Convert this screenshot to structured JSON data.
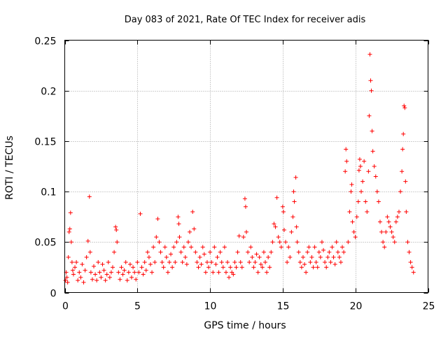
{
  "chart_data": {
    "type": "scatter",
    "marker": "plus",
    "title": "Day 083 of 2021, Rate Of TEC Index for receiver adis",
    "xlabel": "GPS time / hours",
    "ylabel": "ROTI / TECUs",
    "xlim": [
      0,
      25
    ],
    "ylim": [
      0,
      0.25
    ],
    "xticks": [
      0,
      5,
      10,
      15,
      20,
      25
    ],
    "xtick_labels": [
      "0",
      "5",
      "10",
      "15",
      "20",
      "25"
    ],
    "yticks": [
      0,
      0.05,
      0.1,
      0.15,
      0.2,
      0.25
    ],
    "ytick_labels": [
      "0",
      "0.05",
      "0.1",
      "0.15",
      "0.2",
      "0.25"
    ],
    "grid": true,
    "color": "#ff0000",
    "series": [
      {
        "name": "ROTI",
        "points": [
          [
            0.05,
            0.012
          ],
          [
            0.1,
            0.02
          ],
          [
            0.15,
            0.015
          ],
          [
            0.2,
            0.01
          ],
          [
            0.25,
            0.035
          ],
          [
            0.3,
            0.06
          ],
          [
            0.35,
            0.063
          ],
          [
            0.4,
            0.079
          ],
          [
            0.45,
            0.05
          ],
          [
            0.5,
            0.03
          ],
          [
            0.55,
            0.022
          ],
          [
            0.6,
            0.018
          ],
          [
            0.7,
            0.025
          ],
          [
            0.8,
            0.03
          ],
          [
            0.9,
            0.012
          ],
          [
            1.0,
            0.02
          ],
          [
            1.1,
            0.015
          ],
          [
            1.2,
            0.028
          ],
          [
            1.3,
            0.01
          ],
          [
            1.4,
            0.022
          ],
          [
            1.5,
            0.035
          ],
          [
            1.6,
            0.051
          ],
          [
            1.7,
            0.095
          ],
          [
            1.75,
            0.04
          ],
          [
            1.8,
            0.02
          ],
          [
            1.9,
            0.013
          ],
          [
            2.0,
            0.026
          ],
          [
            2.1,
            0.018
          ],
          [
            2.2,
            0.012
          ],
          [
            2.3,
            0.03
          ],
          [
            2.4,
            0.02
          ],
          [
            2.5,
            0.015
          ],
          [
            2.6,
            0.028
          ],
          [
            2.7,
            0.022
          ],
          [
            2.8,
            0.012
          ],
          [
            2.9,
            0.018
          ],
          [
            3.0,
            0.03
          ],
          [
            3.1,
            0.015
          ],
          [
            3.2,
            0.02
          ],
          [
            3.3,
            0.025
          ],
          [
            3.4,
            0.04
          ],
          [
            3.5,
            0.065
          ],
          [
            3.55,
            0.062
          ],
          [
            3.6,
            0.05
          ],
          [
            3.7,
            0.02
          ],
          [
            3.8,
            0.013
          ],
          [
            3.9,
            0.025
          ],
          [
            4.0,
            0.018
          ],
          [
            4.1,
            0.022
          ],
          [
            4.2,
            0.03
          ],
          [
            4.3,
            0.012
          ],
          [
            4.4,
            0.02
          ],
          [
            4.5,
            0.028
          ],
          [
            4.6,
            0.015
          ],
          [
            4.7,
            0.025
          ],
          [
            4.8,
            0.02
          ],
          [
            4.9,
            0.013
          ],
          [
            5.0,
            0.03
          ],
          [
            5.1,
            0.02
          ],
          [
            5.2,
            0.078
          ],
          [
            5.3,
            0.025
          ],
          [
            5.4,
            0.018
          ],
          [
            5.5,
            0.03
          ],
          [
            5.6,
            0.022
          ],
          [
            5.7,
            0.04
          ],
          [
            5.8,
            0.035
          ],
          [
            5.9,
            0.028
          ],
          [
            6.0,
            0.02
          ],
          [
            6.1,
            0.045
          ],
          [
            6.2,
            0.03
          ],
          [
            6.3,
            0.055
          ],
          [
            6.4,
            0.073
          ],
          [
            6.5,
            0.05
          ],
          [
            6.6,
            0.04
          ],
          [
            6.7,
            0.03
          ],
          [
            6.8,
            0.025
          ],
          [
            6.9,
            0.045
          ],
          [
            7.0,
            0.035
          ],
          [
            7.1,
            0.02
          ],
          [
            7.2,
            0.03
          ],
          [
            7.3,
            0.038
          ],
          [
            7.4,
            0.025
          ],
          [
            7.5,
            0.045
          ],
          [
            7.6,
            0.03
          ],
          [
            7.7,
            0.05
          ],
          [
            7.8,
            0.075
          ],
          [
            7.85,
            0.068
          ],
          [
            7.9,
            0.055
          ],
          [
            8.0,
            0.04
          ],
          [
            8.1,
            0.03
          ],
          [
            8.2,
            0.045
          ],
          [
            8.3,
            0.035
          ],
          [
            8.4,
            0.028
          ],
          [
            8.5,
            0.05
          ],
          [
            8.6,
            0.06
          ],
          [
            8.7,
            0.045
          ],
          [
            8.8,
            0.08
          ],
          [
            8.9,
            0.063
          ],
          [
            9.0,
            0.04
          ],
          [
            9.1,
            0.03
          ],
          [
            9.2,
            0.025
          ],
          [
            9.3,
            0.035
          ],
          [
            9.4,
            0.028
          ],
          [
            9.5,
            0.045
          ],
          [
            9.6,
            0.038
          ],
          [
            9.7,
            0.02
          ],
          [
            9.8,
            0.03
          ],
          [
            9.9,
            0.025
          ],
          [
            10.0,
            0.04
          ],
          [
            10.1,
            0.03
          ],
          [
            10.2,
            0.02
          ],
          [
            10.3,
            0.045
          ],
          [
            10.4,
            0.028
          ],
          [
            10.5,
            0.035
          ],
          [
            10.6,
            0.02
          ],
          [
            10.7,
            0.04
          ],
          [
            10.8,
            0.03
          ],
          [
            10.9,
            0.025
          ],
          [
            11.0,
            0.045
          ],
          [
            11.1,
            0.02
          ],
          [
            11.2,
            0.03
          ],
          [
            11.3,
            0.015
          ],
          [
            11.4,
            0.025
          ],
          [
            11.5,
            0.02
          ],
          [
            11.6,
            0.018
          ],
          [
            11.7,
            0.03
          ],
          [
            11.8,
            0.025
          ],
          [
            11.9,
            0.04
          ],
          [
            12.0,
            0.056
          ],
          [
            12.1,
            0.03
          ],
          [
            12.2,
            0.025
          ],
          [
            12.3,
            0.055
          ],
          [
            12.4,
            0.093
          ],
          [
            12.45,
            0.085
          ],
          [
            12.5,
            0.06
          ],
          [
            12.6,
            0.04
          ],
          [
            12.7,
            0.03
          ],
          [
            12.8,
            0.045
          ],
          [
            12.9,
            0.035
          ],
          [
            13.0,
            0.025
          ],
          [
            13.1,
            0.03
          ],
          [
            13.2,
            0.038
          ],
          [
            13.3,
            0.02
          ],
          [
            13.4,
            0.035
          ],
          [
            13.5,
            0.028
          ],
          [
            13.6,
            0.025
          ],
          [
            13.7,
            0.04
          ],
          [
            13.8,
            0.03
          ],
          [
            13.9,
            0.02
          ],
          [
            14.0,
            0.035
          ],
          [
            14.1,
            0.025
          ],
          [
            14.2,
            0.04
          ],
          [
            14.3,
            0.05
          ],
          [
            14.4,
            0.068
          ],
          [
            14.5,
            0.065
          ],
          [
            14.6,
            0.094
          ],
          [
            14.7,
            0.055
          ],
          [
            14.8,
            0.05
          ],
          [
            14.9,
            0.045
          ],
          [
            15.0,
            0.085
          ],
          [
            15.05,
            0.08
          ],
          [
            15.1,
            0.062
          ],
          [
            15.2,
            0.05
          ],
          [
            15.3,
            0.03
          ],
          [
            15.4,
            0.045
          ],
          [
            15.5,
            0.035
          ],
          [
            15.6,
            0.06
          ],
          [
            15.7,
            0.075
          ],
          [
            15.75,
            0.1
          ],
          [
            15.8,
            0.09
          ],
          [
            15.9,
            0.114
          ],
          [
            15.95,
            0.065
          ],
          [
            16.0,
            0.05
          ],
          [
            16.1,
            0.04
          ],
          [
            16.2,
            0.03
          ],
          [
            16.3,
            0.025
          ],
          [
            16.4,
            0.035
          ],
          [
            16.5,
            0.028
          ],
          [
            16.6,
            0.02
          ],
          [
            16.7,
            0.04
          ],
          [
            16.8,
            0.045
          ],
          [
            16.9,
            0.03
          ],
          [
            17.0,
            0.035
          ],
          [
            17.1,
            0.025
          ],
          [
            17.2,
            0.045
          ],
          [
            17.3,
            0.03
          ],
          [
            17.4,
            0.025
          ],
          [
            17.5,
            0.04
          ],
          [
            17.6,
            0.035
          ],
          [
            17.7,
            0.05
          ],
          [
            17.8,
            0.042
          ],
          [
            17.9,
            0.03
          ],
          [
            18.0,
            0.025
          ],
          [
            18.1,
            0.035
          ],
          [
            18.2,
            0.04
          ],
          [
            18.3,
            0.03
          ],
          [
            18.4,
            0.045
          ],
          [
            18.5,
            0.035
          ],
          [
            18.6,
            0.028
          ],
          [
            18.7,
            0.05
          ],
          [
            18.8,
            0.04
          ],
          [
            18.9,
            0.035
          ],
          [
            19.0,
            0.03
          ],
          [
            19.1,
            0.045
          ],
          [
            19.2,
            0.04
          ],
          [
            19.3,
            0.12
          ],
          [
            19.35,
            0.142
          ],
          [
            19.4,
            0.13
          ],
          [
            19.5,
            0.05
          ],
          [
            19.6,
            0.08
          ],
          [
            19.7,
            0.1
          ],
          [
            19.75,
            0.107
          ],
          [
            19.8,
            0.07
          ],
          [
            19.9,
            0.06
          ],
          [
            20.0,
            0.055
          ],
          [
            20.1,
            0.075
          ],
          [
            20.2,
            0.09
          ],
          [
            20.25,
            0.121
          ],
          [
            20.3,
            0.132
          ],
          [
            20.35,
            0.125
          ],
          [
            20.4,
            0.1
          ],
          [
            20.5,
            0.11
          ],
          [
            20.6,
            0.13
          ],
          [
            20.7,
            0.09
          ],
          [
            20.8,
            0.08
          ],
          [
            20.9,
            0.12
          ],
          [
            20.95,
            0.175
          ],
          [
            21.0,
            0.236
          ],
          [
            21.05,
            0.21
          ],
          [
            21.1,
            0.2
          ],
          [
            21.15,
            0.16
          ],
          [
            21.2,
            0.14
          ],
          [
            21.3,
            0.125
          ],
          [
            21.4,
            0.115
          ],
          [
            21.5,
            0.1
          ],
          [
            21.6,
            0.09
          ],
          [
            21.7,
            0.07
          ],
          [
            21.8,
            0.06
          ],
          [
            21.9,
            0.05
          ],
          [
            22.0,
            0.045
          ],
          [
            22.1,
            0.06
          ],
          [
            22.2,
            0.075
          ],
          [
            22.3,
            0.07
          ],
          [
            22.4,
            0.065
          ],
          [
            22.5,
            0.06
          ],
          [
            22.6,
            0.055
          ],
          [
            22.7,
            0.05
          ],
          [
            22.8,
            0.07
          ],
          [
            22.9,
            0.075
          ],
          [
            23.0,
            0.08
          ],
          [
            23.1,
            0.1
          ],
          [
            23.2,
            0.12
          ],
          [
            23.25,
            0.142
          ],
          [
            23.3,
            0.157
          ],
          [
            23.35,
            0.185
          ],
          [
            23.4,
            0.183
          ],
          [
            23.45,
            0.11
          ],
          [
            23.5,
            0.08
          ],
          [
            23.6,
            0.05
          ],
          [
            23.7,
            0.04
          ],
          [
            23.8,
            0.03
          ],
          [
            23.9,
            0.025
          ],
          [
            24.0,
            0.02
          ]
        ]
      }
    ]
  }
}
